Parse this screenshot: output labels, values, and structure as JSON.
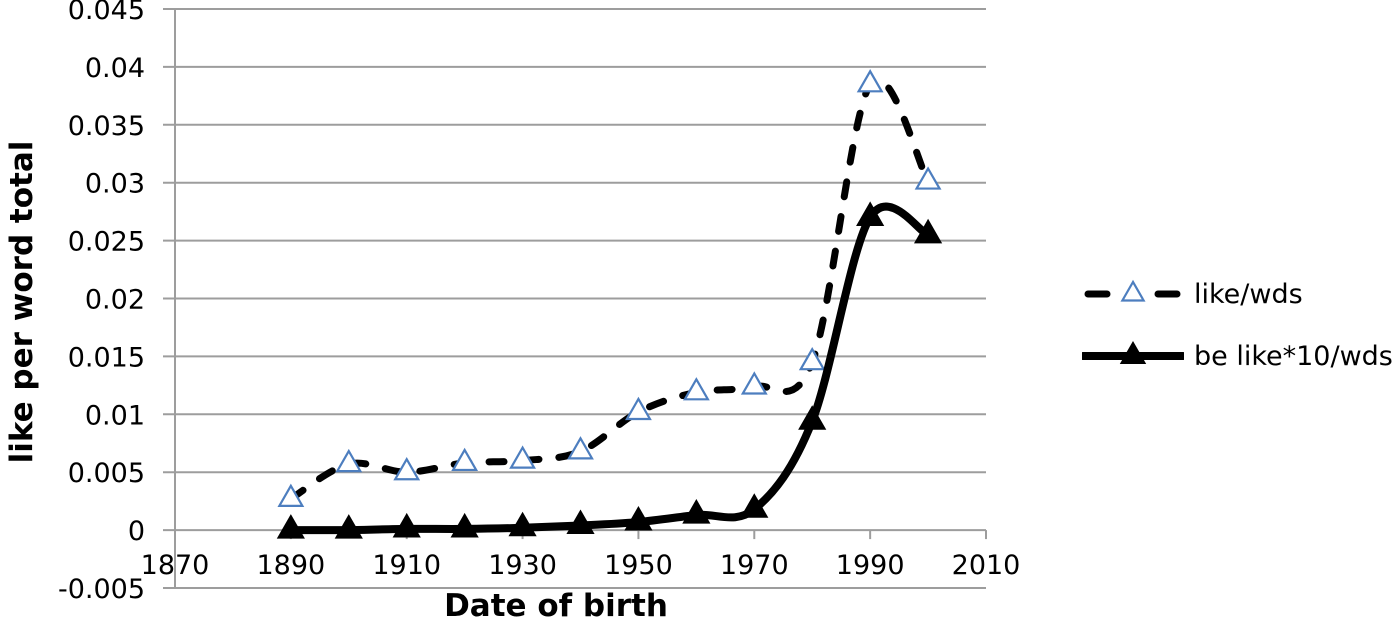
{
  "figure": {
    "background": "#ffffff",
    "text_color": "#000000"
  },
  "chart_data": {
    "type": "line",
    "title": "",
    "xlabel": "Date of birth",
    "ylabel": "like per word total",
    "xlim": [
      1870,
      2010
    ],
    "ylim": [
      -0.005,
      0.045
    ],
    "x_ticks": [
      1870,
      1890,
      1910,
      1930,
      1950,
      1970,
      1990,
      2010
    ],
    "y_ticks": [
      -0.005,
      0,
      0.005,
      0.01,
      0.015,
      0.02,
      0.025,
      0.03,
      0.035,
      0.04,
      0.045
    ],
    "y_tick_labels": [
      "-0.005",
      "0",
      "0.005",
      "0.01",
      "0.015",
      "0.02",
      "0.025",
      "0.03",
      "0.035",
      "0.04",
      "0.045"
    ],
    "grid": "horizontal",
    "grid_color": "#9d9d9d",
    "legend_position": "right",
    "x": [
      1890,
      1900,
      1910,
      1920,
      1930,
      1940,
      1950,
      1960,
      1970,
      1980,
      1990,
      2000
    ],
    "series": [
      {
        "name": "like/wds",
        "values": [
          0.0027,
          0.0057,
          0.005,
          0.0058,
          0.006,
          0.0068,
          0.0102,
          0.0119,
          0.0124,
          0.0145,
          0.0385,
          0.0301
        ],
        "line": "dashed",
        "smooth": true,
        "line_color": "#000000",
        "marker": "open-triangle",
        "marker_fill": "#ffffff",
        "marker_stroke": "#4d7ebf"
      },
      {
        "name": "be like*10/wds",
        "values": [
          0.0,
          0.0,
          0.0001,
          0.0001,
          0.0002,
          0.0004,
          0.0007,
          0.0013,
          0.0018,
          0.0094,
          0.027,
          0.0255
        ],
        "line": "solid",
        "smooth": true,
        "line_color": "#000000",
        "marker": "filled-triangle",
        "marker_fill": "#000000",
        "marker_stroke": "#000000"
      }
    ]
  }
}
